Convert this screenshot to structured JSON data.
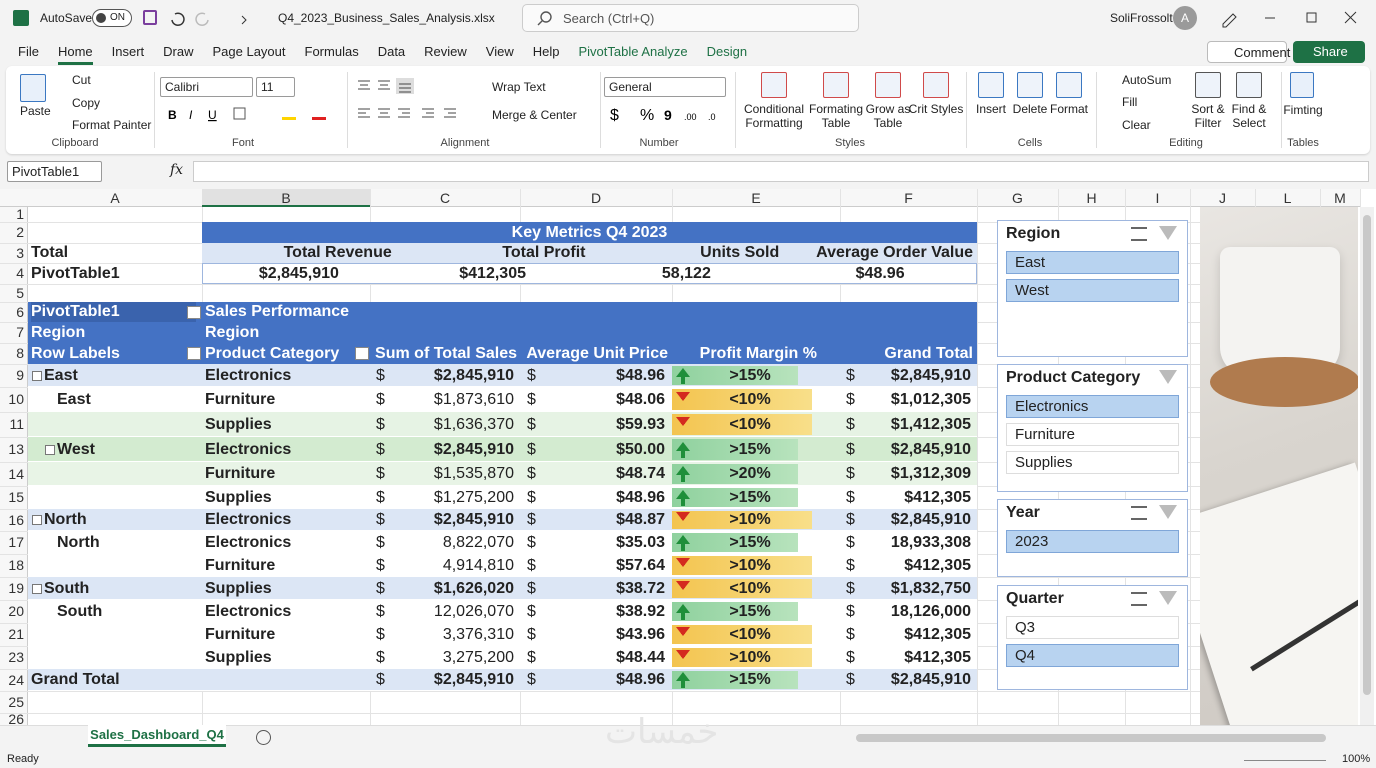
{
  "title_bar": {
    "autosave": "AutoSave",
    "toggle": "ON",
    "file_name": "Q4_2023_Business_Sales_Analysis.xlsx",
    "search": "Search (Ctrl+Q)",
    "user": "SoliFrossolt",
    "avatar": "A"
  },
  "menu": {
    "tabs": [
      "File",
      "Home",
      "Insert",
      "Draw",
      "Page Layout",
      "Formulas",
      "Data",
      "Review",
      "View",
      "Help",
      "PivotTable Analyze",
      "Design"
    ],
    "comment": "Comment",
    "share": "Share"
  },
  "ribbon": {
    "clipboard": {
      "label": "Clipboard",
      "paste": "Paste",
      "cut": "Cut",
      "copy": "Copy",
      "format_painter": "Format Painter"
    },
    "font": {
      "label": "Font",
      "name": "Calibri",
      "size": "11"
    },
    "alignment": {
      "label": "Alignment",
      "wrap": "Wrap Text",
      "merge": "Merge & Center"
    },
    "number": {
      "label": "Number",
      "format": "General"
    },
    "styles": {
      "label": "Styles",
      "buttons": [
        "Conditional Formatting",
        "Formating Table",
        "Grow as Table",
        "Crit Styles"
      ]
    },
    "cells": {
      "label": "Cells",
      "buttons": [
        "Insert",
        "Delete",
        "Format"
      ]
    },
    "editing": {
      "label": "Editing",
      "autosum": "AutoSum",
      "fill": "Fill",
      "clear": "Clear",
      "buttons": [
        "Sort & Filter",
        "Find & Select"
      ]
    },
    "tables": {
      "label": "Tables",
      "button": "Fimting"
    }
  },
  "formula_bar": {
    "name_box": "PivotTable1",
    "fx": "fx"
  },
  "columns": [
    "A",
    "B",
    "C",
    "D",
    "E",
    "F",
    "G",
    "H",
    "I",
    "J",
    "L",
    "M"
  ],
  "rows": [
    "1",
    "2",
    "3",
    "4",
    "5",
    "6",
    "7",
    "8",
    "9",
    "10",
    "11",
    "13",
    "14",
    "15",
    "16",
    "17",
    "18",
    "19",
    "20",
    "21",
    "23",
    "24",
    "25",
    "26"
  ],
  "cells": {
    "total": "Total",
    "pivot_name": "PivotTable1"
  },
  "key_metrics": {
    "title": "Key Metrics Q4 2023",
    "headers": [
      "Total Revenue",
      "Total Profit",
      "Units Sold",
      "Average Order Value"
    ],
    "values": [
      "$2,845,910",
      "$412,305",
      "58,122",
      "$48.96"
    ]
  },
  "pivot": {
    "name": "PivotTable1",
    "caption": "Sales Performance",
    "row_field": "Region",
    "column_field": "Region",
    "row_labels": "Row Labels",
    "headers": [
      "Product Category",
      "Sum of Total Sales",
      "Average Unit Price",
      "Profit Margin %",
      "Grand Total"
    ],
    "currency": "$",
    "rows": [
      {
        "label": "East",
        "group": true,
        "category": "Electronics",
        "sales": "$2,845,910",
        "price": "$48.96",
        "trend": "up",
        "margin": ">15%",
        "total": "$2,845,910",
        "color": "#dce6f5"
      },
      {
        "label": "East",
        "group": false,
        "category": "Furniture",
        "sales": "$1,873,610",
        "price": "$48.06",
        "trend": "down",
        "margin": "<10%",
        "total": "$1,012,305",
        "color": "#ffffff"
      },
      {
        "category": "Supplies",
        "sales": "$1,636,370",
        "price": "$59.93",
        "trend": "down",
        "margin": "<10%",
        "total": "$1,412,305",
        "color": "#e6f3e4"
      },
      {
        "label": "West",
        "group": true,
        "category": "Electronics",
        "sales": "$2,845,910",
        "price": "$50.00",
        "trend": "up",
        "margin": ">15%",
        "total": "$2,845,910",
        "color": "#d3ebd0"
      },
      {
        "category": "Furniture",
        "sales": "$1,535,870",
        "price": "$48.74",
        "trend": "up",
        "margin": ">20%",
        "total": "$1,312,309",
        "color": "#e8f4e6"
      },
      {
        "category": "Supplies",
        "sales": "$1,275,200",
        "price": "$48.96",
        "trend": "up",
        "margin": ">15%",
        "total": "$412,305",
        "color": "#ffffff"
      },
      {
        "label": "North",
        "group": true,
        "category": "Electronics",
        "sales": "$2,845,910",
        "price": "$48.87",
        "trend": "down",
        "margin": ">10%",
        "total": "$2,845,910",
        "color": "#dce6f5"
      },
      {
        "label": "North",
        "group": false,
        "category": "Electronics",
        "sales": "8,822,070",
        "price": "$35.03",
        "trend": "up",
        "margin": ">15%",
        "total": "18,933,308",
        "color": "#ffffff"
      },
      {
        "category": "Furniture",
        "sales": "4,914,810",
        "price": "$57.64",
        "trend": "down",
        "margin": ">10%",
        "total": "$412,305",
        "color": "#ffffff"
      },
      {
        "label": "South",
        "group": true,
        "category": "Supplies",
        "sales": "$1,626,020",
        "price": "$38.72",
        "trend": "down",
        "margin": "<10%",
        "total": "$1,832,750",
        "color": "#dce6f5"
      },
      {
        "label": "South",
        "group": false,
        "category": "Electronics",
        "sales": "12,026,070",
        "price": "$38.92",
        "trend": "up",
        "margin": ">15%",
        "total": "18,126,000",
        "color": "#ffffff"
      },
      {
        "category": "Furniture",
        "sales": "3,376,310",
        "price": "$43.96",
        "trend": "down",
        "margin": "<10%",
        "total": "$412,305",
        "color": "#ffffff"
      },
      {
        "category": "Supplies",
        "sales": "3,275,200",
        "price": "$48.44",
        "trend": "down",
        "margin": ">10%",
        "total": "$412,305",
        "color": "#ffffff"
      },
      {
        "label": "Grand Total",
        "group": false,
        "grand": true,
        "sales": "$2,845,910",
        "price": "$48.96",
        "trend": "up",
        "margin": ">15%",
        "total": "$2,845,910",
        "color": "#dce6f5"
      }
    ]
  },
  "slicers": [
    {
      "title": "Region",
      "items": [
        {
          "label": "East",
          "selected": true
        },
        {
          "label": "West",
          "selected": true
        }
      ]
    },
    {
      "title": "Product Category",
      "items": [
        {
          "label": "Electronics",
          "selected": true
        },
        {
          "label": "Furniture",
          "selected": false
        },
        {
          "label": "Supplies",
          "selected": false
        }
      ]
    },
    {
      "title": "Year",
      "items": [
        {
          "label": "2023",
          "selected": true
        }
      ]
    },
    {
      "title": "Quarter",
      "items": [
        {
          "label": "Q3",
          "selected": false
        },
        {
          "label": "Q4",
          "selected": true
        }
      ]
    }
  ],
  "sheet_tab": "Sales_Dashboard_Q4",
  "watermark": "خمسات",
  "status": "Ready",
  "zoom": "100%"
}
